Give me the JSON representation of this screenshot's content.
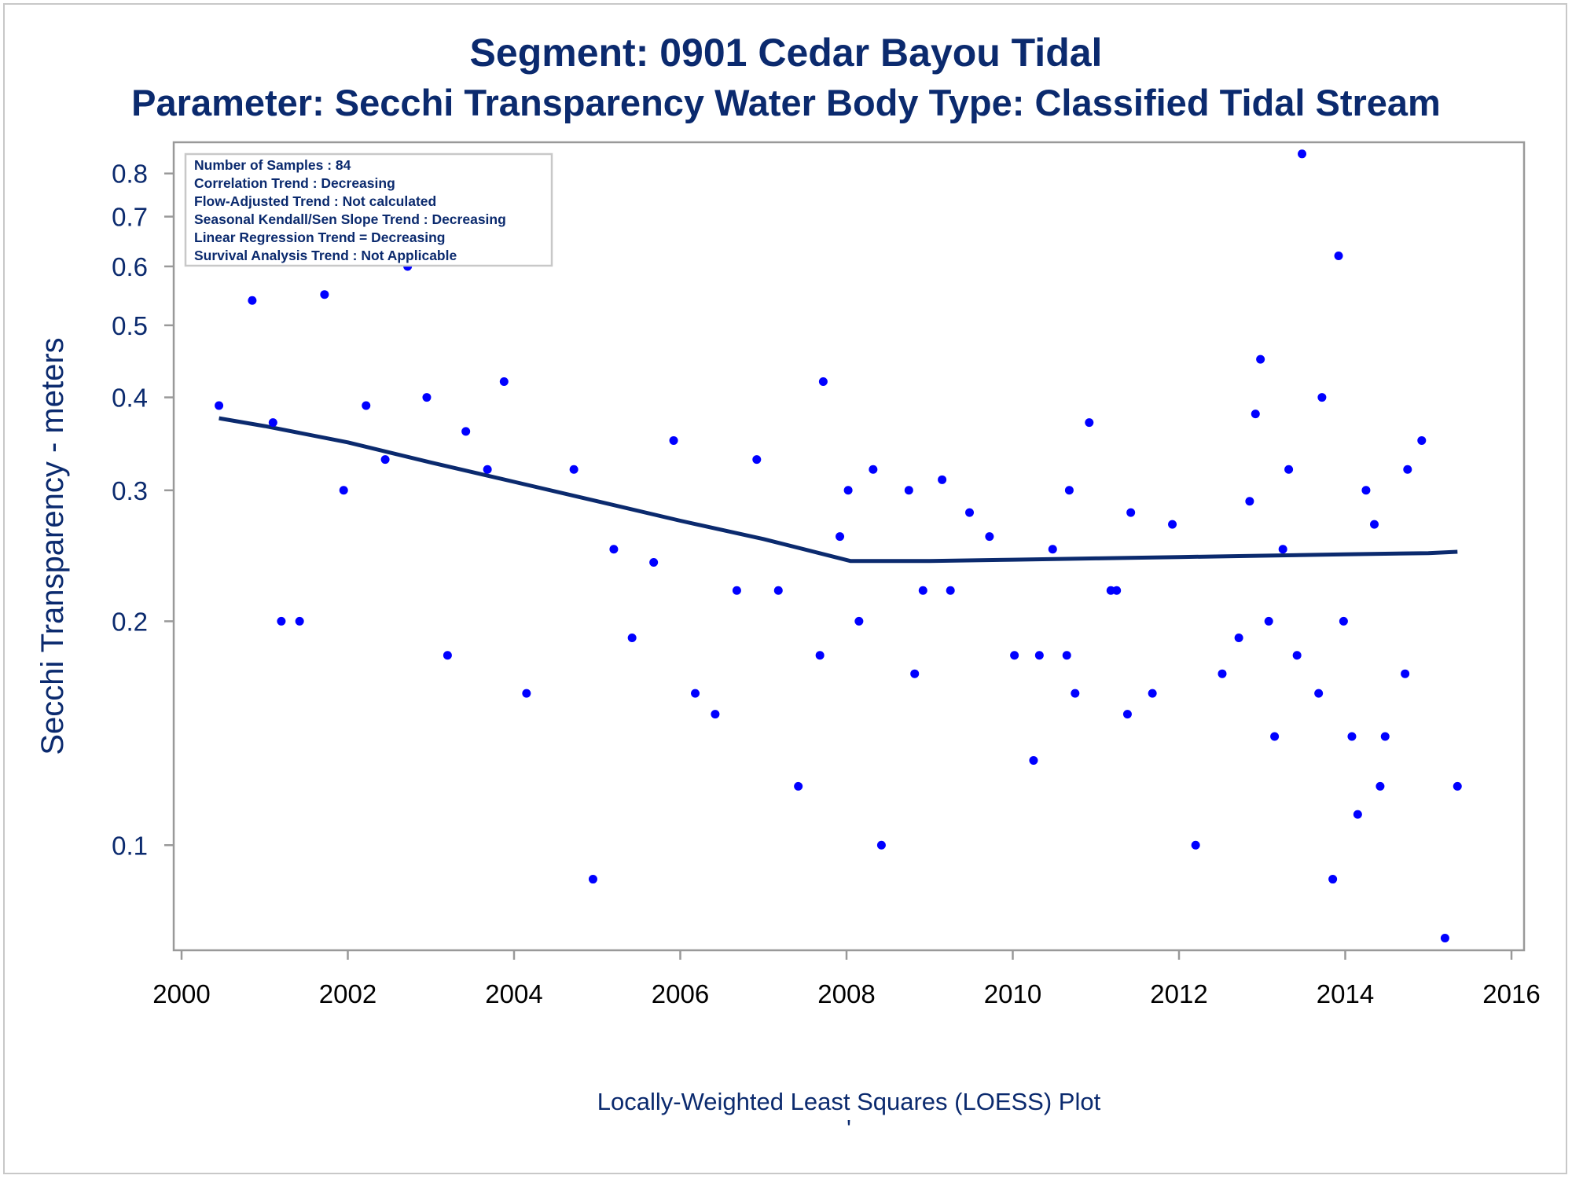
{
  "title": "Segment: 0901  Cedar Bayou Tidal",
  "subtitle": "Parameter: Secchi Transparency   Water Body Type: Classified Tidal Stream",
  "footnote": "Locally-Weighted Least Squares (LOESS) Plot",
  "footnote_mark": "'",
  "colors": {
    "text": "#0b2a6e",
    "points": "#0000ff",
    "line": "#0b2a6e",
    "axis": "#999999"
  },
  "stats_box": [
    "Number of Samples : 84",
    "Correlation Trend : Decreasing",
    "Flow-Adjusted Trend : Not calculated",
    "Seasonal Kendall/Sen Slope Trend : Decreasing",
    "Linear Regression Trend = Decreasing",
    "Survival Analysis Trend : Not Applicable"
  ],
  "chart_data": {
    "type": "scatter",
    "title": "Segment: 0901  Cedar Bayou Tidal",
    "subtitle": "Parameter: Secchi Transparency   Water Body Type: Classified Tidal Stream",
    "xlabel": "",
    "ylabel": "Secchi Transparency - meters",
    "xlim": [
      2000,
      2016
    ],
    "x_ticks": [
      2000,
      2002,
      2004,
      2006,
      2008,
      2010,
      2012,
      2014,
      2016
    ],
    "y_scale": "log",
    "ylim": [
      0.074,
      0.86
    ],
    "y_ticks": [
      0.1,
      0.2,
      0.3,
      0.4,
      0.5,
      0.6,
      0.7,
      0.8
    ],
    "y_tick_labels": [
      "0.1",
      "0.2",
      "0.3",
      "0.4",
      "0.5",
      "0.6",
      "0.7",
      "0.8"
    ],
    "grid": false,
    "series": [
      {
        "kind": "points",
        "x": [
          2000.45,
          2000.85,
          2001.1,
          2001.2,
          2001.42,
          2001.72,
          2001.95,
          2002.22,
          2002.45,
          2002.72,
          2002.95,
          2003.2,
          2003.42,
          2003.68,
          2003.88,
          2004.15,
          2004.72,
          2004.95,
          2005.2,
          2005.42,
          2005.68,
          2005.92,
          2006.18,
          2006.42,
          2006.68,
          2006.92,
          2007.18,
          2007.42,
          2007.68,
          2007.72,
          2007.92,
          2008.02,
          2008.15,
          2008.32,
          2008.42,
          2008.75,
          2008.82,
          2008.92,
          2009.15,
          2009.25,
          2009.48,
          2009.72,
          2010.02,
          2010.25,
          2010.32,
          2010.48,
          2010.65,
          2010.68,
          2010.75,
          2010.92,
          2011.18,
          2011.25,
          2011.38,
          2011.42,
          2011.68,
          2011.92,
          2012.2,
          2012.52,
          2012.72,
          2012.85,
          2012.92,
          2012.98,
          2013.08,
          2013.15,
          2013.25,
          2013.32,
          2013.42,
          2013.48,
          2013.68,
          2013.72,
          2013.85,
          2013.92,
          2013.98,
          2014.08,
          2014.15,
          2014.25,
          2014.35,
          2014.42,
          2014.48,
          2014.72,
          2014.75,
          2014.92,
          2015.2,
          2015.35
        ],
        "y": [
          0.39,
          0.54,
          0.37,
          0.2,
          0.2,
          0.55,
          0.3,
          0.39,
          0.33,
          0.6,
          0.4,
          0.18,
          0.36,
          0.32,
          0.42,
          0.16,
          0.32,
          0.09,
          0.25,
          0.19,
          0.24,
          0.35,
          0.16,
          0.15,
          0.22,
          0.33,
          0.22,
          0.12,
          0.18,
          0.42,
          0.26,
          0.3,
          0.2,
          0.32,
          0.1,
          0.3,
          0.17,
          0.22,
          0.31,
          0.22,
          0.28,
          0.26,
          0.18,
          0.13,
          0.18,
          0.25,
          0.18,
          0.3,
          0.16,
          0.37,
          0.22,
          0.22,
          0.15,
          0.28,
          0.16,
          0.27,
          0.1,
          0.17,
          0.19,
          0.29,
          0.38,
          0.45,
          0.2,
          0.14,
          0.25,
          0.32,
          0.18,
          0.85,
          0.16,
          0.4,
          0.09,
          0.62,
          0.2,
          0.14,
          0.11,
          0.3,
          0.27,
          0.12,
          0.14,
          0.17,
          0.32,
          0.35,
          0.075,
          0.12
        ]
      },
      {
        "kind": "loess-line",
        "x": [
          2000.45,
          2001.0,
          2002.0,
          2003.0,
          2004.0,
          2005.0,
          2006.0,
          2007.0,
          2008.05,
          2009.0,
          2010.0,
          2011.0,
          2012.0,
          2013.0,
          2014.0,
          2015.0,
          2015.35
        ],
        "y": [
          0.375,
          0.366,
          0.348,
          0.327,
          0.308,
          0.29,
          0.273,
          0.258,
          0.241,
          0.241,
          0.242,
          0.243,
          0.244,
          0.245,
          0.246,
          0.247,
          0.248
        ]
      }
    ]
  }
}
